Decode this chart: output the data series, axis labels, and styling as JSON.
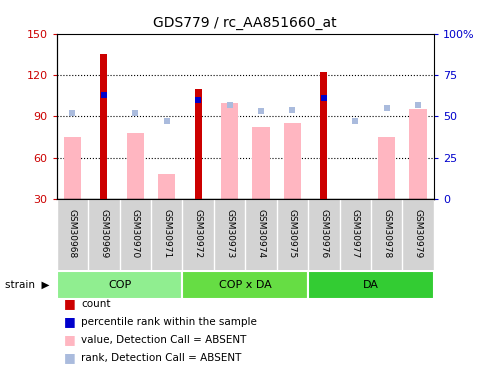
{
  "title": "GDS779 / rc_AA851660_at",
  "samples": [
    "GSM30968",
    "GSM30969",
    "GSM30970",
    "GSM30971",
    "GSM30972",
    "GSM30973",
    "GSM30974",
    "GSM30975",
    "GSM30976",
    "GSM30977",
    "GSM30978",
    "GSM30979"
  ],
  "group_defs": [
    {
      "name": "COP",
      "start": 0,
      "end": 3,
      "color": "#90EE90"
    },
    {
      "name": "COP x DA",
      "start": 4,
      "end": 7,
      "color": "#66DD44"
    },
    {
      "name": "DA",
      "start": 8,
      "end": 11,
      "color": "#33CC33"
    }
  ],
  "count_values": [
    null,
    135,
    null,
    null,
    110,
    null,
    null,
    null,
    122,
    null,
    null,
    null
  ],
  "percentile_values": [
    null,
    63,
    null,
    null,
    60,
    null,
    null,
    null,
    61,
    null,
    null,
    null
  ],
  "value_absent": [
    75,
    null,
    78,
    48,
    null,
    100,
    82,
    85,
    null,
    30,
    75,
    95
  ],
  "rank_absent": [
    52,
    null,
    52,
    47,
    null,
    57,
    53,
    54,
    null,
    47,
    55,
    57
  ],
  "ylim_left": [
    30,
    150
  ],
  "ylim_right": [
    0,
    100
  ],
  "yticks_left": [
    30,
    60,
    90,
    120,
    150
  ],
  "yticks_right": [
    0,
    25,
    50,
    75,
    100
  ],
  "bar_color_count": "#CC0000",
  "bar_color_percentile": "#0000CC",
  "bar_color_value_absent": "#FFB6C1",
  "bar_color_rank_absent": "#AABBDD",
  "bg_color": "#ffffff",
  "plot_bg": "#ffffff",
  "tick_color_left": "#CC0000",
  "tick_color_right": "#0000CC",
  "legend_items": [
    {
      "color": "#CC0000",
      "label": "count"
    },
    {
      "color": "#0000CC",
      "label": "percentile rank within the sample"
    },
    {
      "color": "#FFB6C1",
      "label": "value, Detection Call = ABSENT"
    },
    {
      "color": "#AABBDD",
      "label": "rank, Detection Call = ABSENT"
    }
  ]
}
